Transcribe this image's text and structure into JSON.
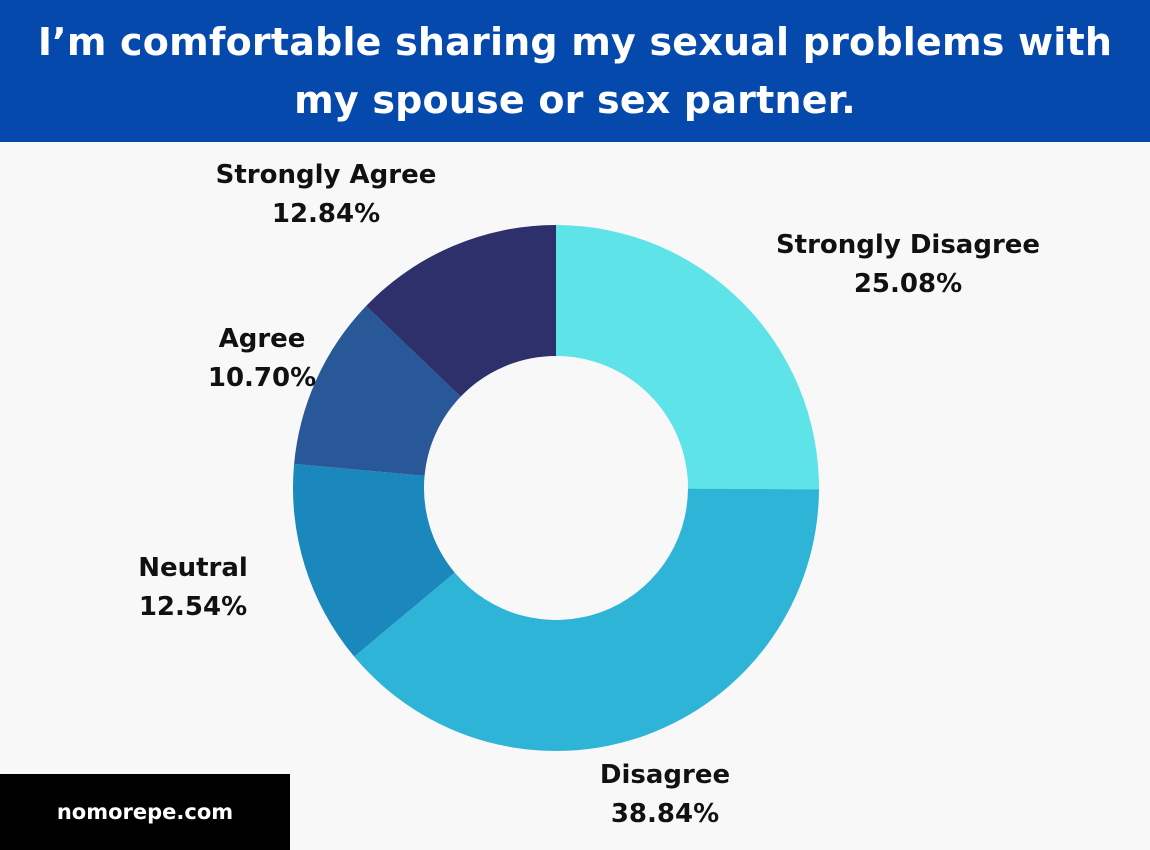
{
  "header": {
    "title": "I’m comfortable sharing my sexual problems with my spouse or sex partner."
  },
  "chart_data": {
    "type": "pie",
    "style": "donut",
    "categories": [
      "Strongly Disagree",
      "Disagree",
      "Neutral",
      "Agree",
      "Strongly Agree"
    ],
    "values": [
      25.08,
      38.84,
      12.54,
      10.7,
      12.84
    ],
    "value_labels": [
      "25.08%",
      "38.84%",
      "12.54%",
      "10.70%",
      "12.84%"
    ],
    "colors": [
      "#5de3e8",
      "#2db4d6",
      "#1a88bd",
      "#285897",
      "#2d306a"
    ],
    "start": "12 o'clock",
    "direction": "clockwise",
    "legend": "none"
  },
  "footer": {
    "site": "nomorepe.com"
  }
}
